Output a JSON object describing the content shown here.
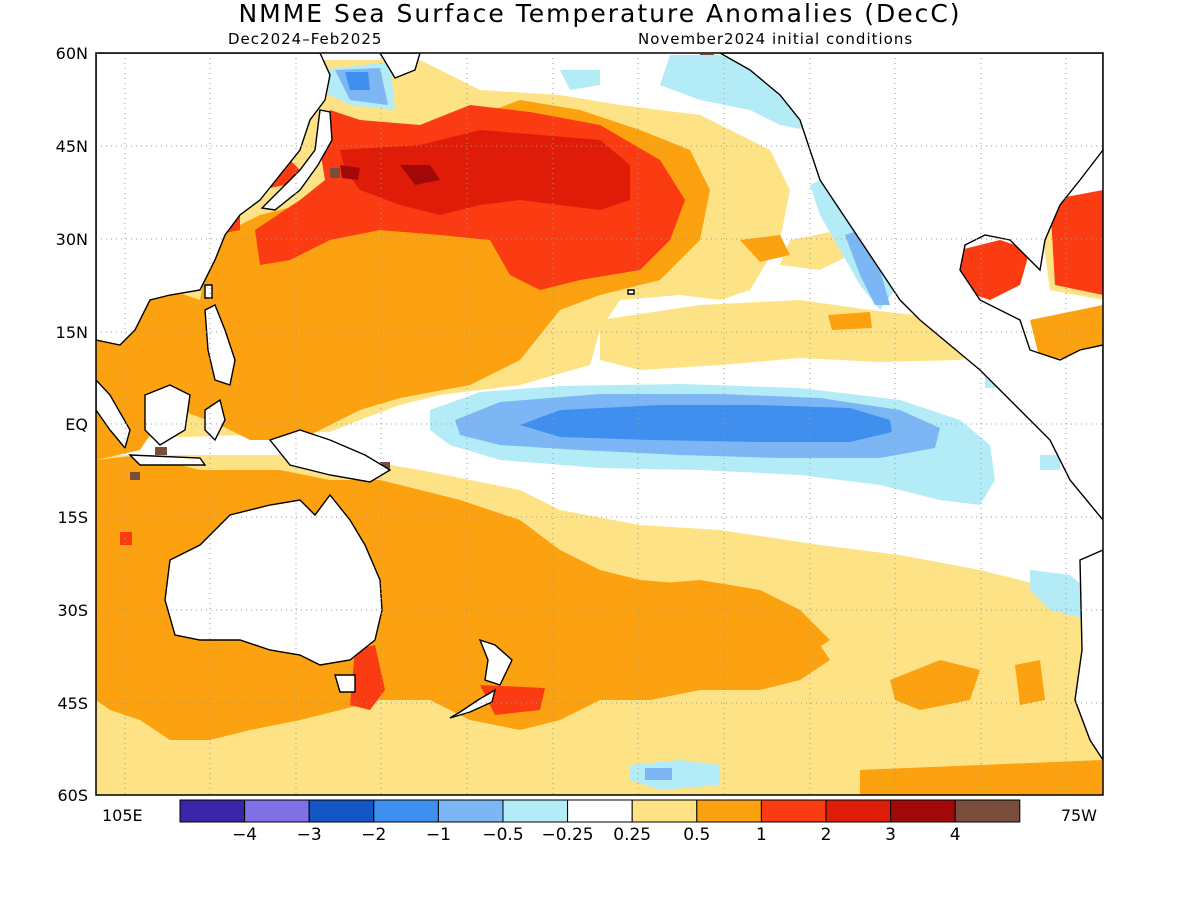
{
  "title": "NMME Sea Surface Temperature Anomalies (DecC)",
  "subtitle_left": "Dec2024–Feb2025",
  "subtitle_right": "November2024 initial conditions",
  "lat_labels": [
    "60N",
    "45N",
    "30N",
    "15N",
    "EQ",
    "15S",
    "30S",
    "45S",
    "60S"
  ],
  "lon_labels": {
    "left": "105E",
    "right": "75W"
  },
  "colorbar": {
    "colors": [
      "#3a25a8",
      "#8070e6",
      "#1556c6",
      "#3f8ff0",
      "#7db6f5",
      "#b3ecf7",
      "#ffffff",
      "#fde386",
      "#fca10f",
      "#fb3b12",
      "#de1c08",
      "#a30808",
      "#7a4c3c"
    ],
    "tick_labels": [
      "−4",
      "−3",
      "−2",
      "−1",
      "−0.5",
      "−0.25",
      "0.25",
      "0.5",
      "1",
      "2",
      "3",
      "4"
    ]
  }
}
